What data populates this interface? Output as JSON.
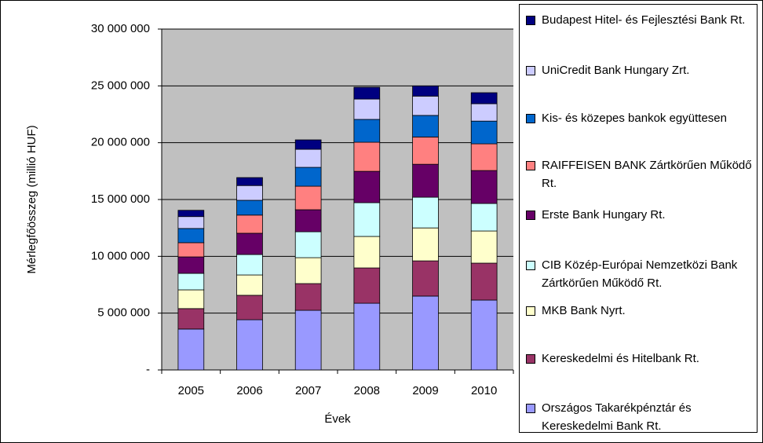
{
  "chart_data": {
    "type": "stacked_bar",
    "x_label": "Évek",
    "y_label": "Mérlegfőösszeg (millió HUF)",
    "categories": [
      "2005",
      "2006",
      "2007",
      "2008",
      "2009",
      "2010"
    ],
    "ylim": [
      0,
      30000000
    ],
    "yticks": [
      {
        "value": 0,
        "label": "-"
      },
      {
        "value": 5000000,
        "label": "5 000 000"
      },
      {
        "value": 10000000,
        "label": "10 000 000"
      },
      {
        "value": 15000000,
        "label": "15 000 000"
      },
      {
        "value": 20000000,
        "label": "20 000 000"
      },
      {
        "value": 25000000,
        "label": "25 000 000"
      },
      {
        "value": 30000000,
        "label": "30 000 000"
      }
    ],
    "grid": true,
    "series": [
      {
        "name": "Országos Takarékpénztár és Kereskedelmi Bank Rt.",
        "color": "#9999ff",
        "values": [
          3600000,
          4420000,
          5250000,
          5870000,
          6500000,
          6150000
        ]
      },
      {
        "name": "Kereskedelmi és Hitelbank Rt.",
        "color": "#993366",
        "values": [
          1800000,
          2150000,
          2350000,
          3110000,
          3100000,
          3250000
        ]
      },
      {
        "name": "MKB Bank Nyrt.",
        "color": "#ffffcc",
        "values": [
          1650000,
          1790000,
          2280000,
          2770000,
          2900000,
          2830000
        ]
      },
      {
        "name": "CIB Közép-Európai Nemzetközi Bank Zártkörűen Működő Rt.",
        "color": "#ccffff",
        "values": [
          1450000,
          1800000,
          2280000,
          2970000,
          2700000,
          2420000
        ]
      },
      {
        "name": "Erste Bank Hungary Rt.",
        "color": "#660066",
        "values": [
          1450000,
          1870000,
          1940000,
          2760000,
          2900000,
          2900000
        ]
      },
      {
        "name": "RAIFFEISEN BANK Zártkörűen Működő Rt.",
        "color": "#ff8080",
        "values": [
          1250000,
          1600000,
          2070000,
          2560000,
          2400000,
          2350000
        ]
      },
      {
        "name": "Kis- és közepes bankok együttesen",
        "color": "#0066cc",
        "values": [
          1250000,
          1300000,
          1660000,
          2010000,
          1900000,
          2000000
        ]
      },
      {
        "name": "UniCredit Bank Hungary Zrt.",
        "color": "#ccccff",
        "values": [
          1050000,
          1300000,
          1590000,
          1790000,
          1700000,
          1530000
        ]
      },
      {
        "name": "Budapest Hitel- és Fejlesztési Bank Rt.",
        "color": "#000080",
        "values": [
          550000,
          700000,
          830000,
          1040000,
          900000,
          970000
        ]
      }
    ]
  }
}
